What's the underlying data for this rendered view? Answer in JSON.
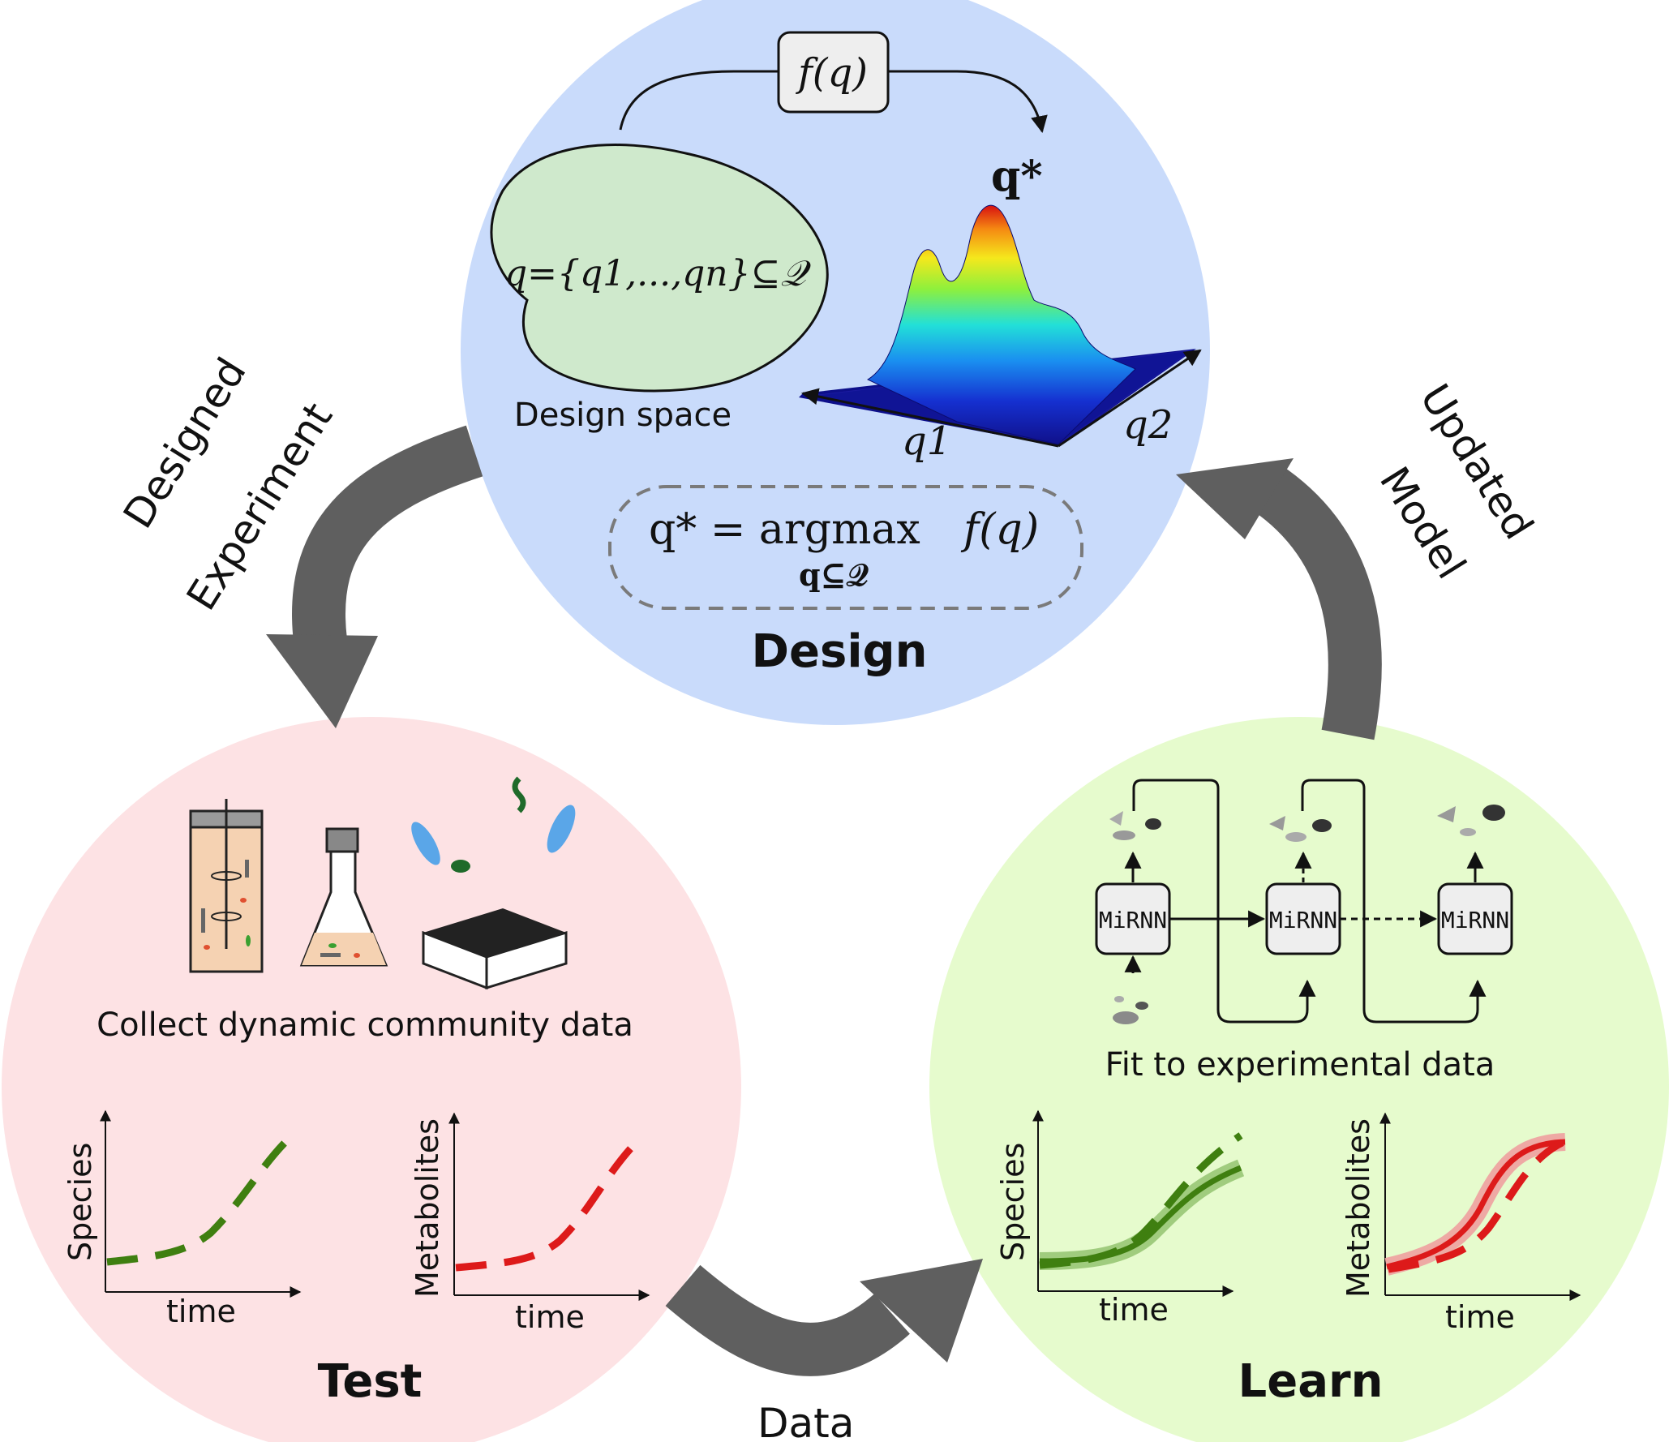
{
  "design": {
    "title": "Design",
    "objective_box_label": "f(q)",
    "design_space_set": "q={q1,...,qn}⊆𝒬",
    "design_space_label": "Design space",
    "optimum_label": "q*",
    "axis_q1": "q1",
    "axis_q2": "q2",
    "argmax_lhs": "q* = argmax",
    "argmax_rhs": "f(q)",
    "argmax_sub": "q⊆𝒬"
  },
  "test": {
    "title": "Test",
    "caption": "Collect dynamic community data",
    "plot_species": {
      "ylabel": "Species",
      "xlabel": "time"
    },
    "plot_metabolites": {
      "ylabel": "Metabolites",
      "xlabel": "time"
    }
  },
  "learn": {
    "title": "Learn",
    "caption": "Fit to experimental data",
    "mirnn_label": "MiRNN",
    "plot_species": {
      "ylabel": "Species",
      "xlabel": "time"
    },
    "plot_metabolites": {
      "ylabel": "Metabolites",
      "xlabel": "time"
    }
  },
  "arrows": {
    "designed_line1": "Designed",
    "designed_line2": "Experiment",
    "updated_line1": "Updated",
    "updated_line2": "Model",
    "data": "Data"
  },
  "colors": {
    "design_bg": "#c9dbfb",
    "test_bg": "#fde2e4",
    "learn_bg": "#e6fbcd",
    "design_space_fill": "#cfe9cc",
    "arrow_gray": "#5f5f5f",
    "species_green": "#3f7f10",
    "metabolite_red": "#dd1a1a"
  }
}
